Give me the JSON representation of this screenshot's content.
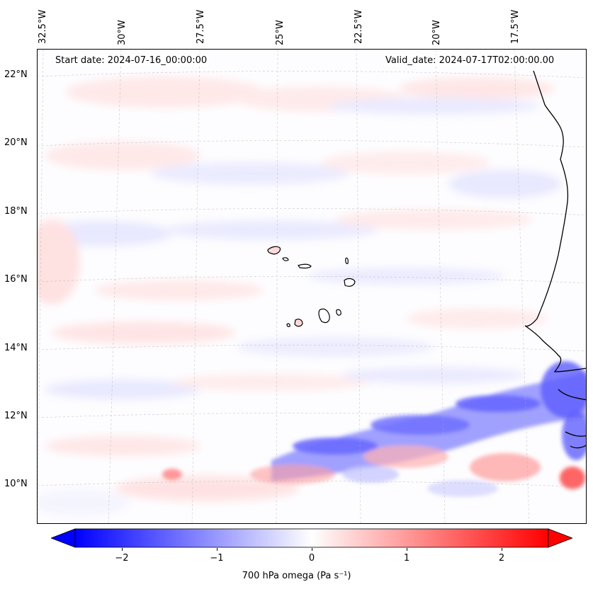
{
  "map": {
    "title_left": "Start date: 2024-07-16_00:00:00",
    "title_right": "Valid_date: 2024-07-17T02:00:00.00",
    "longitude_labels": [
      "32.5°W",
      "30°W",
      "27.5°W",
      "25°W",
      "22.5°W",
      "20°W",
      "17.5°W"
    ],
    "latitude_labels": [
      "22°N",
      "20°N",
      "18°N",
      "16°N",
      "14°N",
      "12°N",
      "10°N"
    ],
    "extent": {
      "lon_min": -33.0,
      "lon_max": -16.3,
      "lat_min": 8.9,
      "lat_max": 22.8
    },
    "gridlines": true,
    "field": "700 hPa omega",
    "colormap": "bwr",
    "colors": {
      "negative": "#0000ff",
      "zero": "#ffffff",
      "positive": "#ff0000",
      "coastline": "#000000"
    }
  },
  "colorbar": {
    "label": "700 hPa omega (Pa s$^{-1}$)",
    "label_display": "700 hPa omega (Pa s⁻¹)",
    "ticks": [
      "−2",
      "−1",
      "0",
      "1",
      "2"
    ],
    "tick_values": [
      -2,
      -1,
      0,
      1,
      2
    ],
    "range": [
      -2.6,
      2.6
    ],
    "extend": "both"
  }
}
